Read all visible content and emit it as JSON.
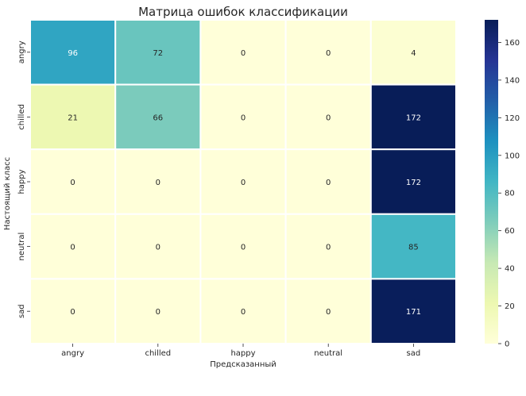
{
  "chart_data": {
    "type": "heatmap",
    "title": "Матрица ошибок классификации",
    "xlabel": "Предсказанный",
    "ylabel": "Настоящий класс",
    "x_categories": [
      "angry",
      "chilled",
      "happy",
      "neutral",
      "sad"
    ],
    "y_categories": [
      "angry",
      "chilled",
      "happy",
      "neutral",
      "sad"
    ],
    "values": [
      [
        96,
        72,
        0,
        0,
        4
      ],
      [
        21,
        66,
        0,
        0,
        172
      ],
      [
        0,
        0,
        0,
        0,
        172
      ],
      [
        0,
        0,
        0,
        0,
        85
      ],
      [
        0,
        0,
        0,
        0,
        171
      ]
    ],
    "colormap": "YlGnBu",
    "vmin": 0,
    "vmax": 172,
    "colorbar_ticks": [
      0,
      20,
      40,
      60,
      80,
      100,
      120,
      140,
      160
    ],
    "grid_line_color": "#ffffff"
  }
}
